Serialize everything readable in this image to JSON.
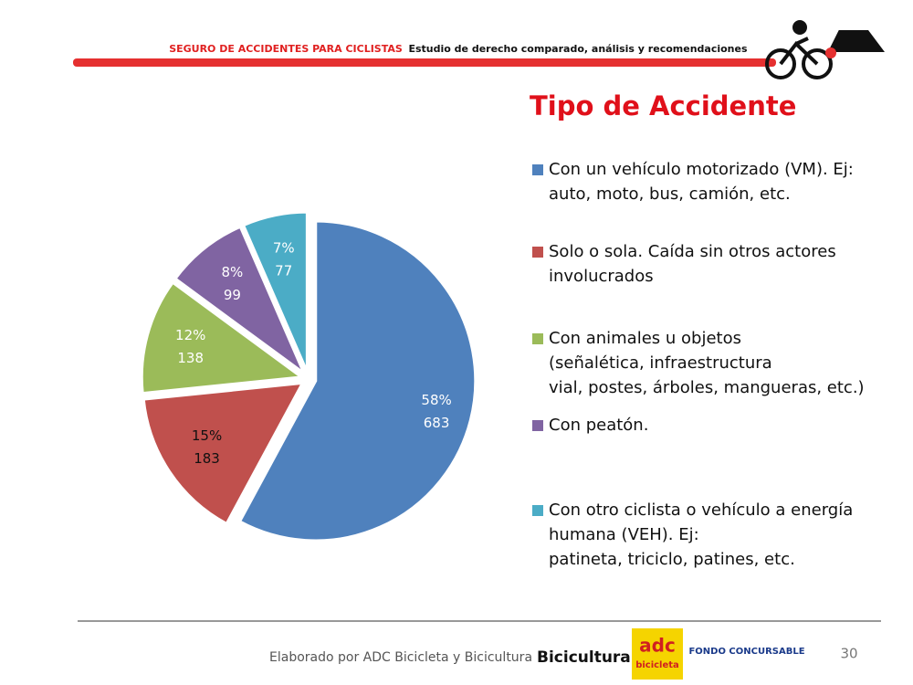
{
  "header": {
    "left": "SEGURO DE ACCIDENTES PARA CICLISTAS",
    "right": "Estudio de derecho comparado, análisis y recomendaciones"
  },
  "chart_data": {
    "type": "pie",
    "title": "Tipo de Accidente",
    "categories": [
      "Con un vehículo motorizado (VM). Ej:\nauto, moto, bus, camión, etc.",
      "Solo o sola. Caída sin otros actores\ninvolucrados",
      "Con animales u objetos\n(señalética, infraestructura\nvial, postes, árboles, mangueras, etc.)",
      "Con peatón.",
      "Con otro ciclista o vehículo a energía\nhumana (VEH). Ej:\npatineta, triciclo, patines, etc."
    ],
    "values": [
      683,
      183,
      138,
      99,
      77
    ],
    "percent_labels": [
      "58%",
      "15%",
      "12%",
      "8%",
      "7%"
    ],
    "colors": [
      "#4f81bd",
      "#c0504d",
      "#9bbb59",
      "#8064a2",
      "#4bacc6"
    ],
    "legend": "right"
  },
  "footer": {
    "credit": "Elaborado por ADC Bicicleta y Bicicultura",
    "logos": [
      "Bicicultura",
      "adc",
      "bicicleta",
      "FONDO CONCURSABLE"
    ],
    "page": "30"
  }
}
